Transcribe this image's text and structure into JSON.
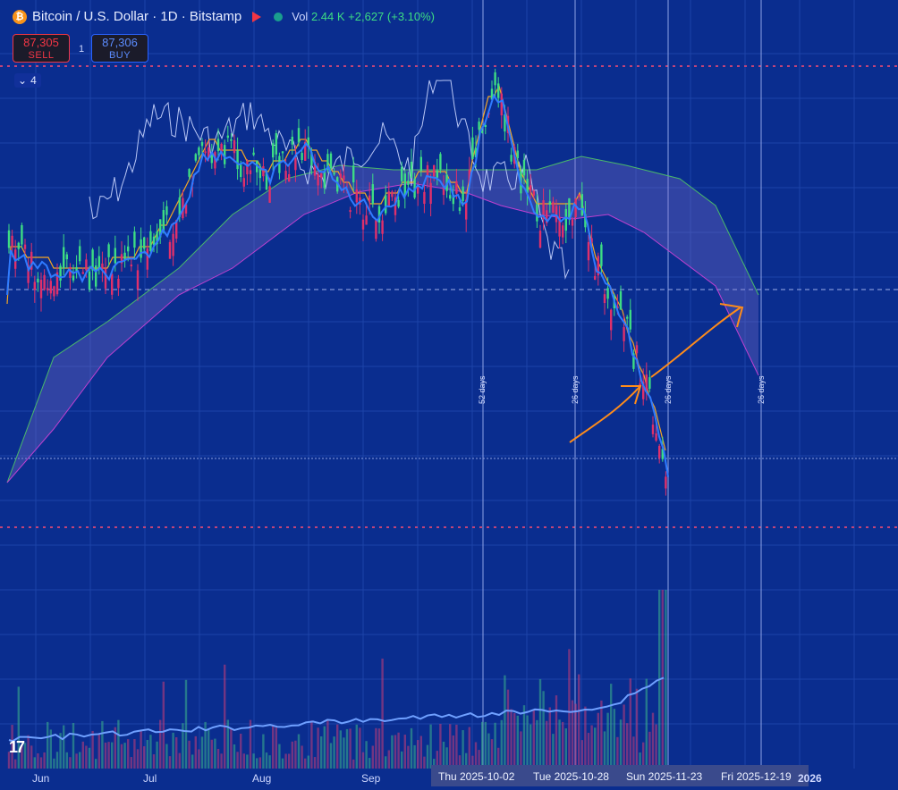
{
  "header": {
    "coin_symbol": "₿",
    "title": "Bitcoin / U.S. Dollar · 1D · Bitstamp",
    "vol_label": "Vol",
    "vol_value": "2.44 K",
    "change": "+2,627 (+3.10%)"
  },
  "trade": {
    "sell_price": "87,305",
    "sell_label": "SELL",
    "buy_price": "87,306",
    "buy_label": "BUY",
    "spread": "1"
  },
  "indicators_count": "4",
  "x_axis": {
    "months": [
      "Jun",
      "Jul",
      "Aug",
      "Sep"
    ],
    "dates": [
      "Thu 2025-10-02",
      "Tue 2025-10-28",
      "Sun 2025-11-23",
      "Fri 2025-12-19"
    ],
    "year": "2026"
  },
  "cycle_labels": [
    "52 days",
    "26 days",
    "26 days",
    "26 days"
  ],
  "logo_text": "17",
  "colors": {
    "background": "#0a2d8f",
    "up": "#3ddc84",
    "down": "#e0306b",
    "kijun": "#f5a623",
    "tenkan": "#2f7bff",
    "arrow": "#ff8c1a"
  }
}
